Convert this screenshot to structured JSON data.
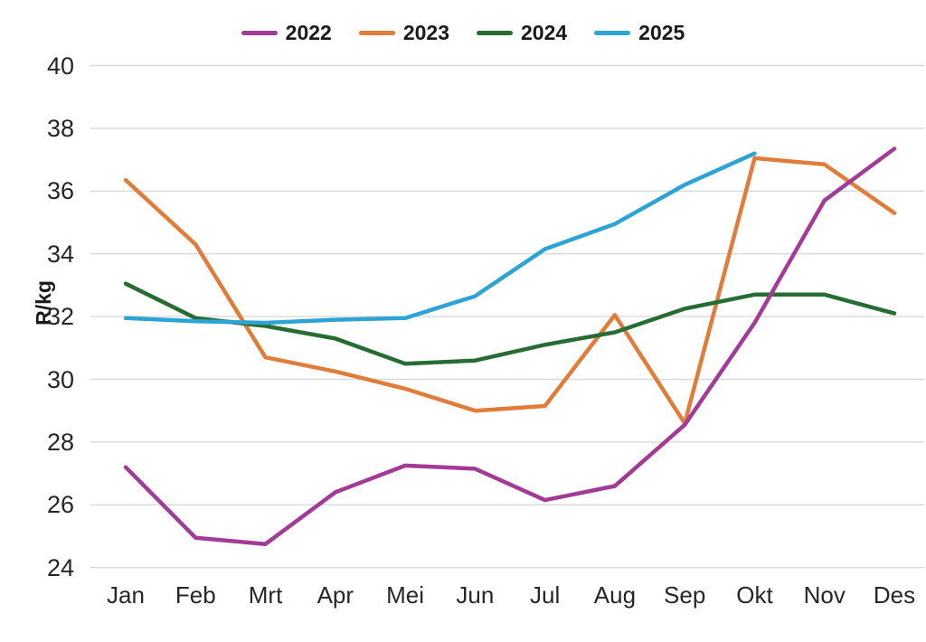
{
  "colors": {
    "background": "#FFFFFF",
    "grid": "#D9D9D9",
    "axis_text": "#262626",
    "legend_text": "#1A1A1A"
  },
  "chart_data": {
    "type": "line",
    "title": "",
    "xlabel": "",
    "ylabel": "R/kg",
    "ylim": [
      24,
      40
    ],
    "y_ticks": [
      40,
      38,
      36,
      34,
      32,
      30,
      28,
      26,
      24
    ],
    "grid": "horizontal",
    "legend_position": "top-center",
    "categories": [
      "Jan",
      "Feb",
      "Mrt",
      "Apr",
      "Mei",
      "Jun",
      "Jul",
      "Aug",
      "Sep",
      "Okt",
      "Nov",
      "Des"
    ],
    "series": [
      {
        "name": "2022",
        "color": "#A23B96",
        "values": [
          27.2,
          24.95,
          24.75,
          26.4,
          27.25,
          27.15,
          26.15,
          26.6,
          28.55,
          31.8,
          35.7,
          37.35
        ]
      },
      {
        "name": "2023",
        "color": "#E07D3A",
        "values": [
          36.35,
          34.3,
          30.7,
          30.25,
          29.7,
          29.0,
          29.15,
          32.05,
          28.6,
          37.05,
          36.85,
          35.3
        ]
      },
      {
        "name": "2024",
        "color": "#266D34",
        "values": [
          33.05,
          31.95,
          31.7,
          31.3,
          30.5,
          30.6,
          31.1,
          31.5,
          32.25,
          32.7,
          32.7,
          32.1
        ]
      },
      {
        "name": "2025",
        "color": "#2EA4D4",
        "values": [
          31.95,
          31.85,
          31.8,
          31.9,
          31.95,
          32.65,
          34.15,
          34.95,
          36.2,
          37.2,
          null,
          null
        ]
      }
    ]
  }
}
